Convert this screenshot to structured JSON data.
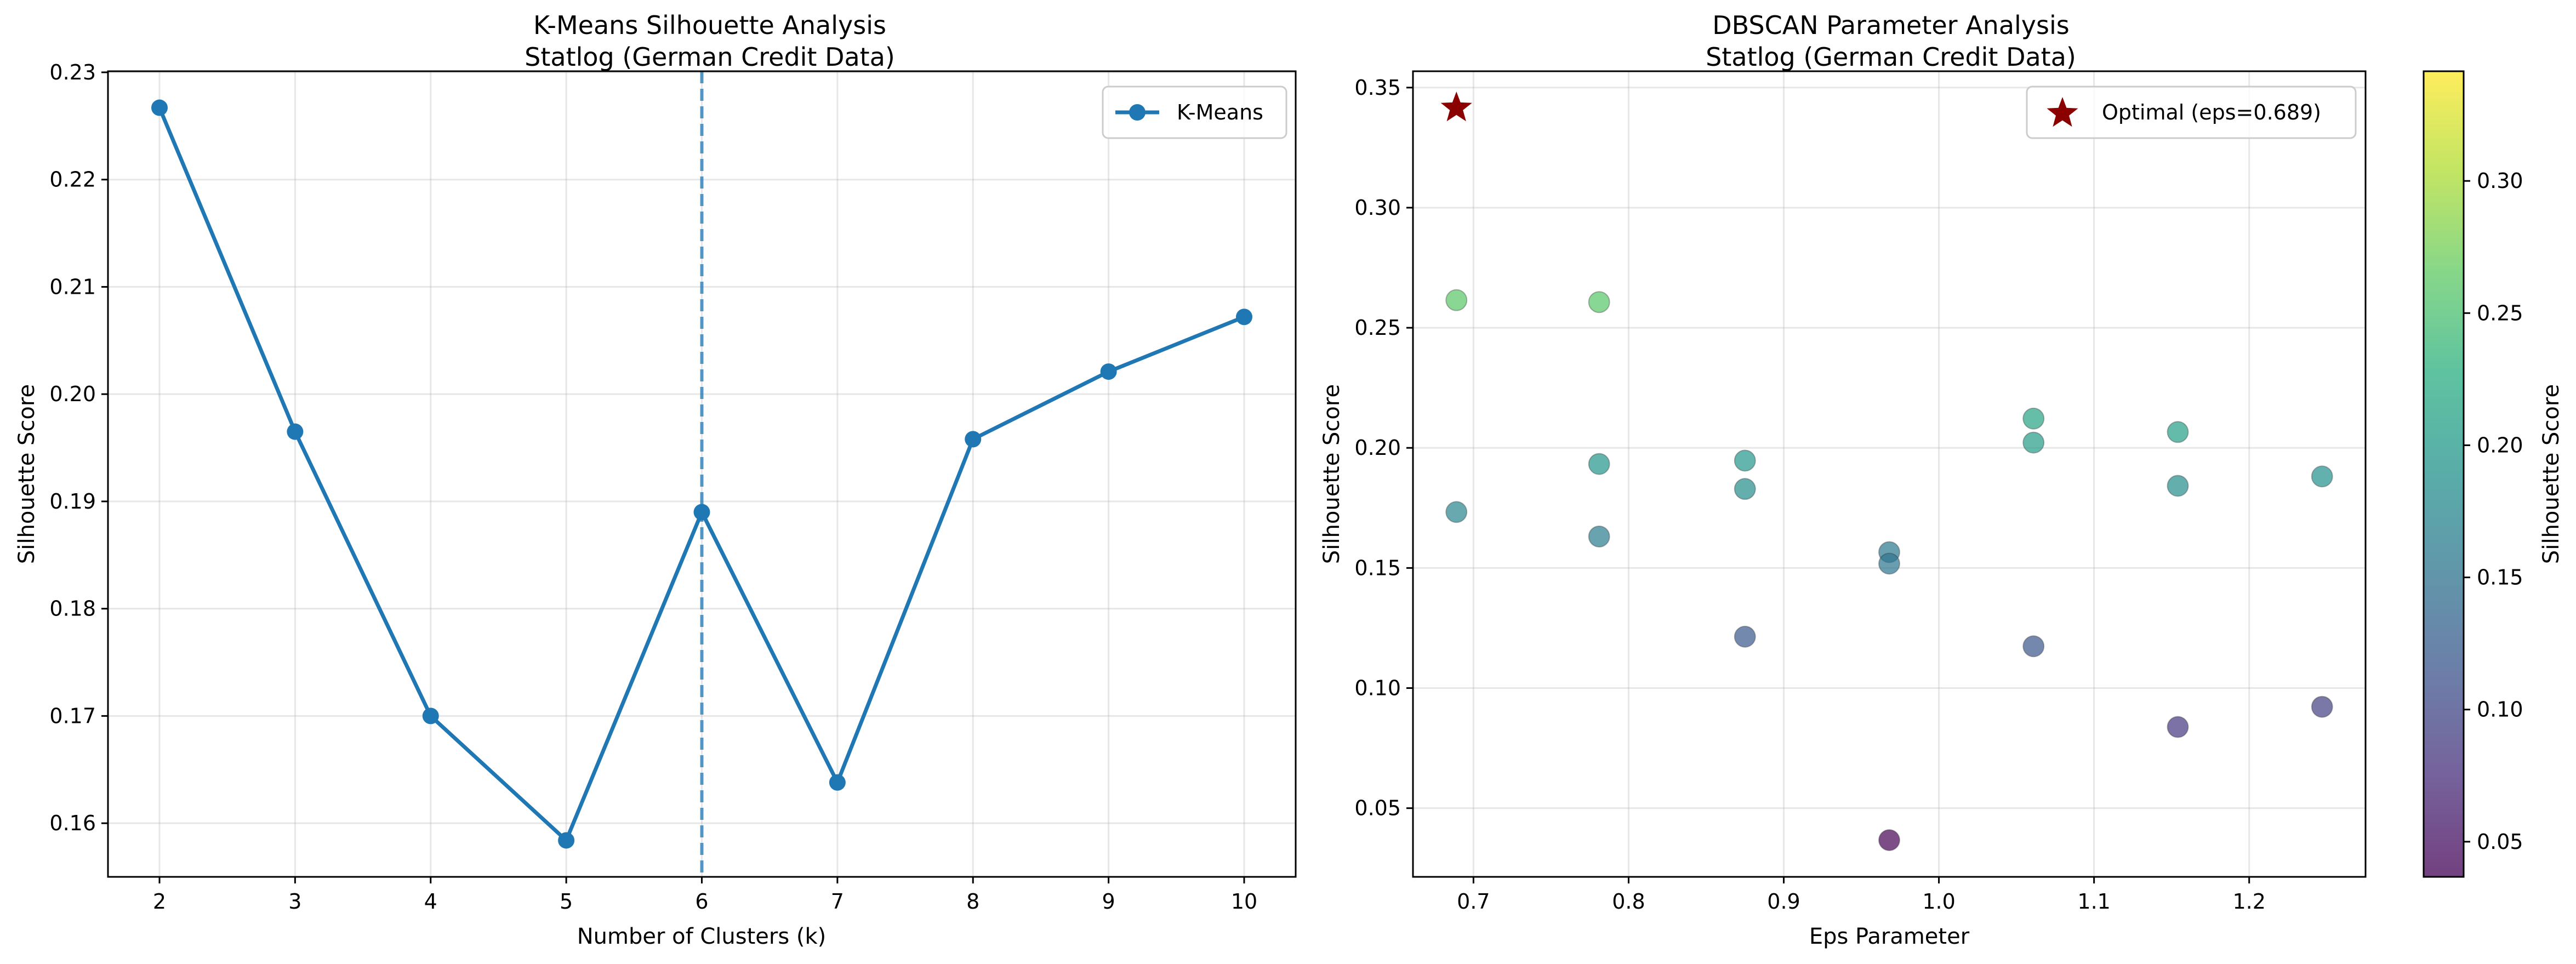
{
  "chart_data": [
    {
      "type": "line",
      "title": "K-Means Silhouette Analysis",
      "subtitle": "Statlog (German Credit Data)",
      "xlabel": "Number of Clusters (k)",
      "ylabel": "Silhouette Score",
      "x": [
        2,
        3,
        4,
        5,
        6,
        7,
        8,
        9,
        10
      ],
      "series": [
        {
          "name": "K-Means",
          "values": [
            0.2267,
            0.1965,
            0.17,
            0.1584,
            0.189,
            0.1638,
            0.1958,
            0.2021,
            0.2072
          ],
          "color": "#1f77b4"
        }
      ],
      "xlim": [
        1.62,
        10.38
      ],
      "ylim": [
        0.155,
        0.2301
      ],
      "xticks": [
        "2",
        "3",
        "4",
        "5",
        "6",
        "7",
        "8",
        "9",
        "10"
      ],
      "yticks": [
        "0.16",
        "0.17",
        "0.18",
        "0.19",
        "0.20",
        "0.21",
        "0.22",
        "0.23"
      ],
      "vline": {
        "x": 6,
        "style": "dashed",
        "color": "#1f77b4"
      },
      "grid": true,
      "legend_position": "top-right"
    },
    {
      "type": "scatter",
      "title": "DBSCAN Parameter Analysis",
      "subtitle": "Statlog (German Credit Data)",
      "xlabel": "Eps Parameter",
      "ylabel": "Silhouette Score",
      "points": [
        {
          "x": 0.689,
          "y": 0.2615
        },
        {
          "x": 0.689,
          "y": 0.1733
        },
        {
          "x": 0.781,
          "y": 0.2607
        },
        {
          "x": 0.781,
          "y": 0.1933
        },
        {
          "x": 0.781,
          "y": 0.1631
        },
        {
          "x": 0.875,
          "y": 0.1947
        },
        {
          "x": 0.875,
          "y": 0.1829
        },
        {
          "x": 0.875,
          "y": 0.1214
        },
        {
          "x": 0.968,
          "y": 0.1566
        },
        {
          "x": 0.968,
          "y": 0.1518
        },
        {
          "x": 0.968,
          "y": 0.0367
        },
        {
          "x": 1.061,
          "y": 0.2122
        },
        {
          "x": 1.061,
          "y": 0.2022
        },
        {
          "x": 1.061,
          "y": 0.1174
        },
        {
          "x": 1.154,
          "y": 0.2066
        },
        {
          "x": 1.154,
          "y": 0.1842
        },
        {
          "x": 1.154,
          "y": 0.0838
        },
        {
          "x": 1.247,
          "y": 0.1881
        },
        {
          "x": 1.247,
          "y": 0.0922
        }
      ],
      "optimal": {
        "label": "Optimal (eps=0.689)",
        "x": 0.689,
        "y": 0.3415,
        "color": "#8b0000",
        "marker": "star"
      },
      "xlim": [
        0.661,
        1.275
      ],
      "ylim": [
        0.0214,
        0.3568
      ],
      "xticks": [
        "0.7",
        "0.8",
        "0.9",
        "1.0",
        "1.1",
        "1.2"
      ],
      "yticks": [
        "0.05",
        "0.10",
        "0.15",
        "0.20",
        "0.25",
        "0.30",
        "0.35"
      ],
      "colorbar": {
        "label": "Silhouette Score",
        "colormap": "viridis",
        "range": [
          0.0367,
          0.3415
        ],
        "ticks": [
          "0.05",
          "0.10",
          "0.15",
          "0.20",
          "0.25",
          "0.30"
        ]
      },
      "grid": true,
      "legend_position": "top-right"
    }
  ]
}
